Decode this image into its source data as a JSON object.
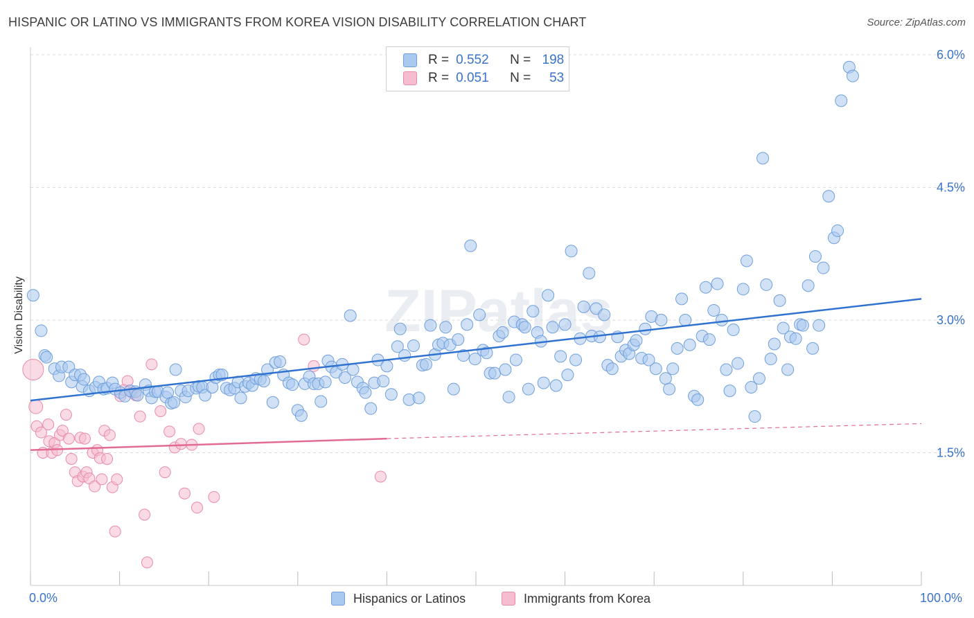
{
  "header": {
    "title": "HISPANIC OR LATINO VS IMMIGRANTS FROM KOREA VISION DISABILITY CORRELATION CHART",
    "source": "Source: ZipAtlas.com"
  },
  "legend": {
    "rows": [
      {
        "r_label": "R =",
        "r_value": "0.552",
        "n_label": "N =",
        "n_value": "198"
      },
      {
        "r_label": "R =",
        "r_value": "0.051",
        "n_label": "N =",
        "n_value": "53"
      }
    ]
  },
  "bottom_legend": {
    "items": [
      {
        "label": "Hispanics or Latinos"
      },
      {
        "label": "Immigrants from Korea"
      }
    ]
  },
  "watermark": "ZIPatlas",
  "colors": {
    "blue_fill": "#a9c8ef",
    "blue_stroke": "#6f9fdc",
    "blue_line": "#2f72cf",
    "pink_fill": "#f6bcd0",
    "pink_stroke": "#e88aaa",
    "pink_line": "#e26b94",
    "tick_label": "#3a73c9",
    "grid": "#d9d9d9"
  },
  "chart_data": {
    "type": "scatter",
    "title": "HISPANIC OR LATINO VS IMMIGRANTS FROM KOREA VISION DISABILITY CORRELATION CHART",
    "xlabel": "",
    "ylabel": "Vision Disability",
    "xlim": [
      0,
      100
    ],
    "ylim": [
      0,
      6.2
    ],
    "x_tick_labels": [
      "0.0%",
      "100.0%"
    ],
    "y_ticks": [
      1.5,
      3.0,
      4.5,
      6.0
    ],
    "y_tick_labels": [
      "1.5%",
      "3.0%",
      "4.5%",
      "6.0%"
    ],
    "grid": true,
    "legend_position": "top-center",
    "series": [
      {
        "name": "Hispanics or Latinos",
        "R": 0.552,
        "N": 198,
        "trend": {
          "x": [
            0,
            100
          ],
          "y": [
            2.09,
            3.24
          ]
        },
        "points": [
          [
            0.3,
            3.28
          ],
          [
            1.2,
            2.88
          ],
          [
            1.6,
            2.6
          ],
          [
            1.8,
            2.58
          ],
          [
            2.7,
            2.45
          ],
          [
            3.2,
            2.37
          ],
          [
            3.5,
            2.47
          ],
          [
            4.3,
            2.47
          ],
          [
            4.6,
            2.3
          ],
          [
            5.0,
            2.38
          ],
          [
            5.6,
            2.38
          ],
          [
            5.8,
            2.25
          ],
          [
            6.0,
            2.33
          ],
          [
            6.6,
            2.2
          ],
          [
            7.3,
            2.24
          ],
          [
            7.7,
            2.3
          ],
          [
            8.2,
            2.22
          ],
          [
            8.6,
            2.23
          ],
          [
            9.2,
            2.29
          ],
          [
            9.5,
            2.22
          ],
          [
            10.1,
            2.18
          ],
          [
            10.6,
            2.14
          ],
          [
            11.2,
            2.2
          ],
          [
            11.8,
            2.19
          ],
          [
            12.0,
            2.15
          ],
          [
            12.9,
            2.27
          ],
          [
            13.3,
            2.2
          ],
          [
            13.6,
            2.12
          ],
          [
            14.0,
            2.19
          ],
          [
            14.3,
            2.19
          ],
          [
            15.2,
            2.13
          ],
          [
            15.4,
            2.18
          ],
          [
            15.8,
            2.06
          ],
          [
            16.1,
            2.07
          ],
          [
            16.3,
            2.44
          ],
          [
            16.9,
            2.2
          ],
          [
            17.4,
            2.13
          ],
          [
            17.7,
            2.2
          ],
          [
            18.6,
            2.23
          ],
          [
            18.9,
            2.25
          ],
          [
            19.3,
            2.24
          ],
          [
            19.6,
            2.15
          ],
          [
            20.4,
            2.24
          ],
          [
            20.8,
            2.35
          ],
          [
            21.2,
            2.38
          ],
          [
            21.5,
            2.38
          ],
          [
            22.0,
            2.23
          ],
          [
            22.4,
            2.21
          ],
          [
            22.9,
            2.23
          ],
          [
            23.3,
            2.3
          ],
          [
            23.6,
            2.12
          ],
          [
            24.1,
            2.25
          ],
          [
            24.5,
            2.29
          ],
          [
            24.9,
            2.26
          ],
          [
            25.3,
            2.34
          ],
          [
            25.8,
            2.33
          ],
          [
            26.2,
            2.31
          ],
          [
            26.6,
            2.44
          ],
          [
            27.2,
            2.07
          ],
          [
            27.5,
            2.52
          ],
          [
            28.0,
            2.53
          ],
          [
            28.4,
            2.38
          ],
          [
            29.0,
            2.29
          ],
          [
            29.4,
            2.27
          ],
          [
            30.0,
            1.98
          ],
          [
            30.4,
            1.92
          ],
          [
            30.8,
            2.28
          ],
          [
            31.3,
            2.36
          ],
          [
            31.8,
            2.28
          ],
          [
            32.3,
            2.28
          ],
          [
            32.6,
            2.08
          ],
          [
            33.1,
            2.3
          ],
          [
            33.4,
            2.54
          ],
          [
            33.8,
            2.47
          ],
          [
            34.3,
            2.41
          ],
          [
            35.0,
            2.5
          ],
          [
            35.3,
            2.35
          ],
          [
            35.9,
            3.05
          ],
          [
            36.2,
            2.44
          ],
          [
            36.7,
            2.3
          ],
          [
            37.3,
            2.23
          ],
          [
            37.6,
            2.18
          ],
          [
            38.2,
            2.0
          ],
          [
            38.6,
            2.29
          ],
          [
            39.0,
            2.55
          ],
          [
            39.6,
            2.31
          ],
          [
            40.0,
            2.48
          ],
          [
            40.5,
            2.16
          ],
          [
            41.2,
            2.7
          ],
          [
            41.5,
            2.9
          ],
          [
            42.0,
            2.6
          ],
          [
            42.5,
            2.1
          ],
          [
            43.0,
            2.71
          ],
          [
            43.6,
            2.12
          ],
          [
            44.0,
            2.49
          ],
          [
            44.4,
            2.5
          ],
          [
            44.9,
            2.94
          ],
          [
            45.4,
            2.61
          ],
          [
            45.8,
            2.72
          ],
          [
            46.3,
            2.74
          ],
          [
            46.6,
            2.92
          ],
          [
            47.1,
            2.72
          ],
          [
            47.5,
            2.22
          ],
          [
            48.0,
            2.78
          ],
          [
            48.6,
            2.6
          ],
          [
            49.0,
            2.95
          ],
          [
            49.4,
            3.84
          ],
          [
            49.9,
            2.56
          ],
          [
            50.4,
            3.06
          ],
          [
            50.8,
            2.66
          ],
          [
            51.2,
            2.63
          ],
          [
            51.6,
            2.4
          ],
          [
            52.1,
            2.4
          ],
          [
            52.6,
            2.82
          ],
          [
            53.0,
            2.86
          ],
          [
            53.3,
            2.44
          ],
          [
            53.7,
            2.13
          ],
          [
            54.3,
            2.98
          ],
          [
            54.5,
            2.55
          ],
          [
            55.2,
            2.95
          ],
          [
            55.5,
            2.92
          ],
          [
            55.9,
            2.22
          ],
          [
            56.4,
            3.1
          ],
          [
            56.9,
            2.86
          ],
          [
            57.3,
            2.76
          ],
          [
            57.6,
            2.29
          ],
          [
            58.1,
            3.28
          ],
          [
            58.6,
            2.92
          ],
          [
            59.0,
            2.26
          ],
          [
            59.5,
            2.59
          ],
          [
            60.0,
            2.95
          ],
          [
            60.3,
            2.38
          ],
          [
            60.7,
            3.78
          ],
          [
            61.2,
            2.55
          ],
          [
            61.7,
            2.79
          ],
          [
            62.1,
            3.15
          ],
          [
            62.7,
            3.53
          ],
          [
            63.0,
            2.82
          ],
          [
            63.5,
            3.13
          ],
          [
            63.9,
            2.81
          ],
          [
            64.4,
            3.06
          ],
          [
            64.8,
            2.49
          ],
          [
            65.3,
            2.45
          ],
          [
            65.9,
            2.81
          ],
          [
            66.3,
            2.59
          ],
          [
            66.8,
            2.66
          ],
          [
            67.2,
            2.62
          ],
          [
            67.7,
            2.72
          ],
          [
            68.0,
            2.77
          ],
          [
            68.6,
            2.57
          ],
          [
            69.0,
            2.9
          ],
          [
            69.4,
            2.55
          ],
          [
            69.7,
            3.04
          ],
          [
            70.2,
            2.45
          ],
          [
            70.8,
            3.0
          ],
          [
            71.3,
            2.34
          ],
          [
            71.7,
            2.22
          ],
          [
            72.1,
            2.45
          ],
          [
            72.6,
            2.68
          ],
          [
            73.1,
            3.24
          ],
          [
            73.5,
            3.0
          ],
          [
            74.0,
            2.72
          ],
          [
            74.5,
            2.14
          ],
          [
            74.9,
            2.1
          ],
          [
            75.4,
            2.82
          ],
          [
            75.8,
            3.37
          ],
          [
            76.2,
            2.78
          ],
          [
            76.7,
            3.11
          ],
          [
            77.1,
            3.41
          ],
          [
            77.6,
            3.0
          ],
          [
            78.1,
            2.44
          ],
          [
            78.5,
            2.2
          ],
          [
            78.9,
            2.89
          ],
          [
            79.4,
            2.51
          ],
          [
            80.0,
            3.35
          ],
          [
            80.4,
            3.67
          ],
          [
            80.9,
            2.24
          ],
          [
            81.3,
            1.91
          ],
          [
            81.8,
            2.34
          ],
          [
            82.2,
            4.83
          ],
          [
            82.6,
            3.4
          ],
          [
            83.1,
            2.56
          ],
          [
            83.5,
            2.73
          ],
          [
            84.1,
            3.22
          ],
          [
            84.5,
            2.91
          ],
          [
            85.0,
            2.44
          ],
          [
            85.3,
            2.81
          ],
          [
            85.9,
            2.79
          ],
          [
            86.4,
            2.95
          ],
          [
            86.7,
            2.94
          ],
          [
            87.3,
            3.39
          ],
          [
            87.8,
            2.68
          ],
          [
            88.1,
            3.72
          ],
          [
            88.5,
            2.94
          ],
          [
            89.0,
            3.59
          ],
          [
            89.6,
            4.4
          ],
          [
            90.2,
            3.93
          ],
          [
            90.6,
            4.01
          ],
          [
            91.0,
            5.48
          ],
          [
            91.9,
            5.86
          ],
          [
            92.3,
            5.76
          ]
        ]
      },
      {
        "name": "Immigrants from Korea",
        "R": 0.051,
        "N": 53,
        "trend": {
          "x": [
            0,
            40
          ],
          "y": [
            1.53,
            1.66
          ],
          "dashed_extension": {
            "x": [
              40,
              100
            ],
            "y": [
              1.66,
              1.83
            ]
          }
        },
        "points": [
          [
            0.3,
            2.44
          ],
          [
            0.6,
            2.02
          ],
          [
            0.7,
            1.8
          ],
          [
            1.2,
            1.73
          ],
          [
            1.4,
            1.5
          ],
          [
            2.0,
            1.82
          ],
          [
            2.1,
            1.63
          ],
          [
            2.4,
            1.5
          ],
          [
            2.7,
            1.61
          ],
          [
            3.0,
            1.53
          ],
          [
            3.3,
            1.7
          ],
          [
            3.6,
            1.75
          ],
          [
            4.0,
            1.93
          ],
          [
            4.3,
            1.66
          ],
          [
            4.6,
            1.43
          ],
          [
            5.0,
            1.28
          ],
          [
            5.3,
            1.18
          ],
          [
            5.6,
            1.67
          ],
          [
            5.9,
            1.23
          ],
          [
            6.1,
            1.66
          ],
          [
            6.3,
            1.28
          ],
          [
            6.6,
            1.21
          ],
          [
            7.0,
            1.5
          ],
          [
            7.2,
            1.12
          ],
          [
            7.5,
            1.53
          ],
          [
            7.8,
            1.44
          ],
          [
            8.0,
            1.2
          ],
          [
            8.3,
            1.75
          ],
          [
            8.6,
            1.43
          ],
          [
            8.9,
            1.7
          ],
          [
            9.2,
            1.11
          ],
          [
            9.5,
            0.61
          ],
          [
            9.7,
            1.2
          ],
          [
            10.1,
            2.14
          ],
          [
            10.5,
            2.21
          ],
          [
            10.9,
            2.31
          ],
          [
            11.4,
            2.18
          ],
          [
            11.8,
            2.15
          ],
          [
            12.3,
            1.91
          ],
          [
            12.8,
            0.8
          ],
          [
            13.1,
            0.26
          ],
          [
            13.6,
            2.5
          ],
          [
            14.6,
            1.97
          ],
          [
            15.1,
            1.28
          ],
          [
            15.6,
            1.74
          ],
          [
            16.2,
            1.56
          ],
          [
            16.9,
            1.6
          ],
          [
            17.3,
            1.04
          ],
          [
            18.1,
            1.59
          ],
          [
            18.7,
            0.88
          ],
          [
            18.9,
            1.77
          ],
          [
            20.6,
            1.0
          ],
          [
            30.7,
            2.78
          ],
          [
            31.8,
            2.48
          ],
          [
            39.3,
            1.23
          ]
        ]
      }
    ]
  }
}
